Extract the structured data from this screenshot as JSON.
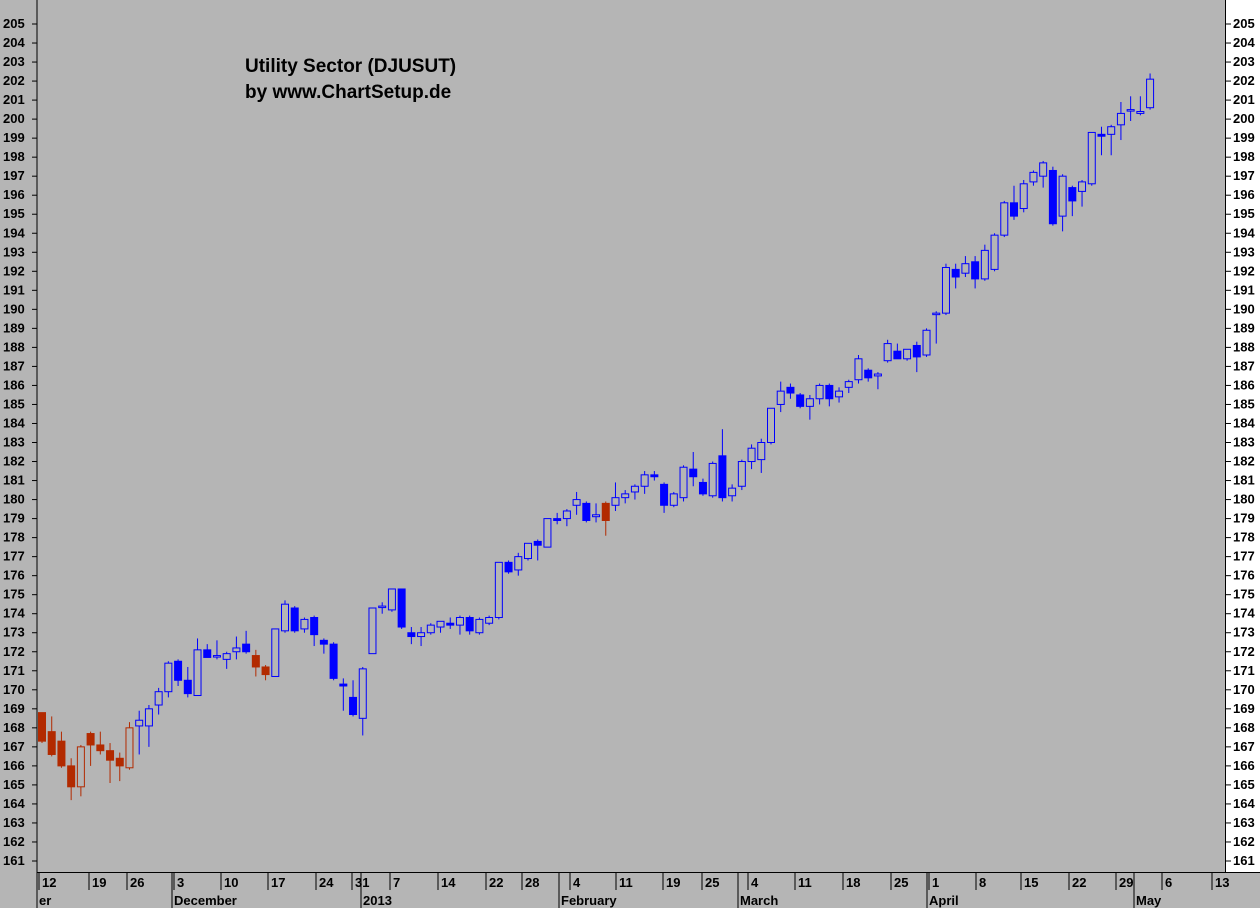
{
  "chart_data": {
    "type": "candlestick",
    "title": "Utility Sector (DJUSUT)",
    "subtitle": "by www.ChartSetup.de",
    "ylim": [
      160.3,
      206.5
    ],
    "y_ticks": [
      161,
      162,
      163,
      164,
      165,
      166,
      167,
      168,
      169,
      170,
      171,
      172,
      173,
      174,
      175,
      176,
      177,
      178,
      179,
      180,
      181,
      182,
      183,
      184,
      185,
      186,
      187,
      188,
      189,
      190,
      191,
      192,
      193,
      194,
      195,
      196,
      197,
      198,
      199,
      200,
      201,
      202,
      203,
      204,
      205
    ],
    "grid": false,
    "x_day_labels": [
      "12",
      "19",
      "26",
      "3",
      "10",
      "17",
      "24",
      "31",
      "7",
      "14",
      "22",
      "28",
      "4",
      "11",
      "19",
      "25",
      "4",
      "11",
      "18",
      "25",
      "1",
      "8",
      "15",
      "22",
      "29",
      "6",
      "13"
    ],
    "x_month_labels": [
      "er",
      "December",
      "2013",
      "February",
      "March",
      "April",
      "May"
    ],
    "colors": {
      "background": "#b5b5b5",
      "up": "#0000ff",
      "down": "#0000ff",
      "up_early": "#b22a00",
      "down_early": "#b22a00"
    },
    "candles": [
      {
        "o": 168.8,
        "h": 168.8,
        "l": 167.2,
        "c": 167.3,
        "s": "early"
      },
      {
        "o": 167.8,
        "h": 168.6,
        "l": 166.5,
        "c": 166.6,
        "s": "early"
      },
      {
        "o": 167.3,
        "h": 167.8,
        "l": 165.9,
        "c": 166.0,
        "s": "early"
      },
      {
        "o": 166.0,
        "h": 166.4,
        "l": 164.2,
        "c": 164.9,
        "s": "early"
      },
      {
        "o": 164.9,
        "h": 167.1,
        "l": 164.4,
        "c": 167.0,
        "s": "early"
      },
      {
        "o": 167.7,
        "h": 167.8,
        "l": 166.0,
        "c": 167.1,
        "s": "early"
      },
      {
        "o": 167.1,
        "h": 167.8,
        "l": 166.6,
        "c": 166.8,
        "s": "early"
      },
      {
        "o": 166.8,
        "h": 167.2,
        "l": 165.1,
        "c": 166.3,
        "s": "early"
      },
      {
        "o": 166.4,
        "h": 166.7,
        "l": 165.2,
        "c": 166.0,
        "s": "early"
      },
      {
        "o": 165.9,
        "h": 168.3,
        "l": 165.8,
        "c": 168.0,
        "s": "early"
      },
      {
        "o": 168.1,
        "h": 168.9,
        "l": 166.6,
        "c": 168.4,
        "s": "main"
      },
      {
        "o": 168.1,
        "h": 169.2,
        "l": 167.0,
        "c": 169.0,
        "s": "main"
      },
      {
        "o": 169.2,
        "h": 170.1,
        "l": 168.7,
        "c": 169.9,
        "s": "main"
      },
      {
        "o": 169.9,
        "h": 171.5,
        "l": 169.6,
        "c": 171.4,
        "s": "main"
      },
      {
        "o": 171.5,
        "h": 171.6,
        "l": 170.2,
        "c": 170.5,
        "s": "main"
      },
      {
        "o": 170.5,
        "h": 171.2,
        "l": 169.6,
        "c": 169.8,
        "s": "main"
      },
      {
        "o": 169.7,
        "h": 172.7,
        "l": 169.7,
        "c": 172.1,
        "s": "main"
      },
      {
        "o": 172.1,
        "h": 172.4,
        "l": 171.7,
        "c": 171.7,
        "s": "main"
      },
      {
        "o": 171.8,
        "h": 172.6,
        "l": 171.6,
        "c": 171.8,
        "s": "main"
      },
      {
        "o": 171.6,
        "h": 172.0,
        "l": 171.1,
        "c": 171.9,
        "s": "main"
      },
      {
        "o": 172.0,
        "h": 172.8,
        "l": 171.6,
        "c": 172.2,
        "s": "main"
      },
      {
        "o": 172.4,
        "h": 173.1,
        "l": 171.9,
        "c": 172.0,
        "s": "main"
      },
      {
        "o": 171.8,
        "h": 172.1,
        "l": 170.7,
        "c": 171.2,
        "s": "early"
      },
      {
        "o": 171.2,
        "h": 171.3,
        "l": 170.5,
        "c": 170.8,
        "s": "early"
      },
      {
        "o": 170.7,
        "h": 173.2,
        "l": 170.7,
        "c": 173.2,
        "s": "main"
      },
      {
        "o": 173.1,
        "h": 174.7,
        "l": 173.0,
        "c": 174.5,
        "s": "main"
      },
      {
        "o": 174.3,
        "h": 174.4,
        "l": 173.0,
        "c": 173.1,
        "s": "main"
      },
      {
        "o": 173.2,
        "h": 173.8,
        "l": 173.0,
        "c": 173.7,
        "s": "main"
      },
      {
        "o": 173.8,
        "h": 173.9,
        "l": 172.3,
        "c": 172.9,
        "s": "main"
      },
      {
        "o": 172.6,
        "h": 172.7,
        "l": 171.9,
        "c": 172.4,
        "s": "main"
      },
      {
        "o": 172.4,
        "h": 172.5,
        "l": 170.5,
        "c": 170.6,
        "s": "main"
      },
      {
        "o": 170.3,
        "h": 170.6,
        "l": 168.9,
        "c": 170.2,
        "s": "main"
      },
      {
        "o": 169.6,
        "h": 170.5,
        "l": 168.6,
        "c": 168.7,
        "s": "main"
      },
      {
        "o": 168.5,
        "h": 171.2,
        "l": 167.6,
        "c": 171.1,
        "s": "main"
      },
      {
        "o": 171.9,
        "h": 174.3,
        "l": 171.9,
        "c": 174.3,
        "s": "main"
      },
      {
        "o": 174.4,
        "h": 174.6,
        "l": 174.0,
        "c": 174.4,
        "s": "main"
      },
      {
        "o": 174.2,
        "h": 175.2,
        "l": 174.1,
        "c": 175.3,
        "s": "main"
      },
      {
        "o": 175.3,
        "h": 175.3,
        "l": 173.2,
        "c": 173.3,
        "s": "main"
      },
      {
        "o": 173.0,
        "h": 173.3,
        "l": 172.4,
        "c": 172.8,
        "s": "main"
      },
      {
        "o": 172.8,
        "h": 173.3,
        "l": 172.3,
        "c": 173.0,
        "s": "main"
      },
      {
        "o": 173.0,
        "h": 173.5,
        "l": 172.9,
        "c": 173.4,
        "s": "main"
      },
      {
        "o": 173.3,
        "h": 173.6,
        "l": 173.0,
        "c": 173.6,
        "s": "main"
      },
      {
        "o": 173.5,
        "h": 173.8,
        "l": 173.2,
        "c": 173.4,
        "s": "main"
      },
      {
        "o": 173.4,
        "h": 173.9,
        "l": 172.9,
        "c": 173.8,
        "s": "main"
      },
      {
        "o": 173.8,
        "h": 173.9,
        "l": 172.9,
        "c": 173.1,
        "s": "main"
      },
      {
        "o": 173.0,
        "h": 173.8,
        "l": 172.9,
        "c": 173.7,
        "s": "main"
      },
      {
        "o": 173.5,
        "h": 173.9,
        "l": 173.4,
        "c": 173.8,
        "s": "main"
      },
      {
        "o": 173.8,
        "h": 176.5,
        "l": 173.7,
        "c": 176.7,
        "s": "main"
      },
      {
        "o": 176.7,
        "h": 176.8,
        "l": 176.1,
        "c": 176.2,
        "s": "main"
      },
      {
        "o": 176.3,
        "h": 177.2,
        "l": 176.0,
        "c": 177.0,
        "s": "main"
      },
      {
        "o": 176.9,
        "h": 177.7,
        "l": 176.8,
        "c": 177.7,
        "s": "main"
      },
      {
        "o": 177.8,
        "h": 177.9,
        "l": 176.8,
        "c": 177.6,
        "s": "main"
      },
      {
        "o": 177.5,
        "h": 179.0,
        "l": 177.5,
        "c": 179.0,
        "s": "main"
      },
      {
        "o": 179.0,
        "h": 179.3,
        "l": 178.7,
        "c": 178.9,
        "s": "main"
      },
      {
        "o": 179.0,
        "h": 179.5,
        "l": 178.6,
        "c": 179.4,
        "s": "main"
      },
      {
        "o": 179.7,
        "h": 180.4,
        "l": 179.2,
        "c": 180.0,
        "s": "main"
      },
      {
        "o": 179.8,
        "h": 179.9,
        "l": 178.8,
        "c": 178.9,
        "s": "main"
      },
      {
        "o": 179.1,
        "h": 179.8,
        "l": 178.8,
        "c": 179.2,
        "s": "main"
      },
      {
        "o": 179.8,
        "h": 179.9,
        "l": 178.1,
        "c": 178.9,
        "s": "early"
      },
      {
        "o": 179.7,
        "h": 180.9,
        "l": 179.4,
        "c": 180.1,
        "s": "main"
      },
      {
        "o": 180.1,
        "h": 180.5,
        "l": 179.8,
        "c": 180.3,
        "s": "main"
      },
      {
        "o": 180.4,
        "h": 180.8,
        "l": 180.0,
        "c": 180.7,
        "s": "main"
      },
      {
        "o": 180.7,
        "h": 181.5,
        "l": 180.3,
        "c": 181.3,
        "s": "main"
      },
      {
        "o": 181.3,
        "h": 181.5,
        "l": 181.0,
        "c": 181.2,
        "s": "main"
      },
      {
        "o": 180.8,
        "h": 180.9,
        "l": 179.3,
        "c": 179.7,
        "s": "main"
      },
      {
        "o": 179.7,
        "h": 180.4,
        "l": 179.6,
        "c": 180.3,
        "s": "main"
      },
      {
        "o": 180.1,
        "h": 181.8,
        "l": 179.9,
        "c": 181.7,
        "s": "main"
      },
      {
        "o": 181.6,
        "h": 182.5,
        "l": 180.7,
        "c": 181.2,
        "s": "main"
      },
      {
        "o": 180.9,
        "h": 181.1,
        "l": 180.2,
        "c": 180.3,
        "s": "main"
      },
      {
        "o": 180.2,
        "h": 182.0,
        "l": 180.1,
        "c": 181.9,
        "s": "main"
      },
      {
        "o": 182.3,
        "h": 183.7,
        "l": 179.9,
        "c": 180.1,
        "s": "main"
      },
      {
        "o": 180.2,
        "h": 180.8,
        "l": 179.9,
        "c": 180.6,
        "s": "main"
      },
      {
        "o": 180.7,
        "h": 182.1,
        "l": 180.5,
        "c": 182.0,
        "s": "main"
      },
      {
        "o": 182.0,
        "h": 182.9,
        "l": 181.6,
        "c": 182.7,
        "s": "main"
      },
      {
        "o": 182.1,
        "h": 183.2,
        "l": 181.4,
        "c": 183.0,
        "s": "main"
      },
      {
        "o": 183.0,
        "h": 184.8,
        "l": 182.9,
        "c": 184.8,
        "s": "main"
      },
      {
        "o": 185.0,
        "h": 186.2,
        "l": 184.6,
        "c": 185.7,
        "s": "main"
      },
      {
        "o": 185.9,
        "h": 186.1,
        "l": 185.3,
        "c": 185.6,
        "s": "main"
      },
      {
        "o": 185.5,
        "h": 185.6,
        "l": 184.8,
        "c": 184.9,
        "s": "main"
      },
      {
        "o": 184.9,
        "h": 185.5,
        "l": 184.2,
        "c": 185.3,
        "s": "main"
      },
      {
        "o": 185.3,
        "h": 186.1,
        "l": 185.0,
        "c": 186.0,
        "s": "main"
      },
      {
        "o": 186.0,
        "h": 186.1,
        "l": 184.9,
        "c": 185.3,
        "s": "main"
      },
      {
        "o": 185.4,
        "h": 185.9,
        "l": 185.1,
        "c": 185.7,
        "s": "main"
      },
      {
        "o": 185.9,
        "h": 186.3,
        "l": 185.6,
        "c": 186.2,
        "s": "main"
      },
      {
        "o": 186.3,
        "h": 187.6,
        "l": 186.1,
        "c": 187.4,
        "s": "main"
      },
      {
        "o": 186.8,
        "h": 186.9,
        "l": 186.2,
        "c": 186.4,
        "s": "main"
      },
      {
        "o": 186.5,
        "h": 186.7,
        "l": 185.8,
        "c": 186.6,
        "s": "main"
      },
      {
        "o": 187.3,
        "h": 188.4,
        "l": 187.2,
        "c": 188.2,
        "s": "main"
      },
      {
        "o": 187.8,
        "h": 188.2,
        "l": 187.4,
        "c": 187.4,
        "s": "main"
      },
      {
        "o": 187.4,
        "h": 187.9,
        "l": 187.3,
        "c": 187.9,
        "s": "main"
      },
      {
        "o": 188.1,
        "h": 188.3,
        "l": 186.7,
        "c": 187.5,
        "s": "main"
      },
      {
        "o": 187.6,
        "h": 189.0,
        "l": 187.5,
        "c": 188.9,
        "s": "main"
      },
      {
        "o": 189.8,
        "h": 189.9,
        "l": 188.2,
        "c": 189.8,
        "s": "main"
      },
      {
        "o": 189.8,
        "h": 192.4,
        "l": 189.7,
        "c": 192.2,
        "s": "main"
      },
      {
        "o": 192.1,
        "h": 192.4,
        "l": 191.1,
        "c": 191.7,
        "s": "main"
      },
      {
        "o": 191.9,
        "h": 192.8,
        "l": 191.7,
        "c": 192.4,
        "s": "main"
      },
      {
        "o": 192.5,
        "h": 192.8,
        "l": 191.1,
        "c": 191.6,
        "s": "main"
      },
      {
        "o": 191.6,
        "h": 193.4,
        "l": 191.5,
        "c": 193.1,
        "s": "main"
      },
      {
        "o": 192.1,
        "h": 194.0,
        "l": 192.0,
        "c": 193.9,
        "s": "main"
      },
      {
        "o": 193.9,
        "h": 195.7,
        "l": 193.8,
        "c": 195.6,
        "s": "main"
      },
      {
        "o": 195.6,
        "h": 196.5,
        "l": 194.7,
        "c": 194.9,
        "s": "main"
      },
      {
        "o": 195.3,
        "h": 196.8,
        "l": 195.1,
        "c": 196.6,
        "s": "main"
      },
      {
        "o": 196.7,
        "h": 197.3,
        "l": 196.5,
        "c": 197.2,
        "s": "main"
      },
      {
        "o": 197.0,
        "h": 197.8,
        "l": 196.4,
        "c": 197.7,
        "s": "main"
      },
      {
        "o": 197.3,
        "h": 197.5,
        "l": 194.4,
        "c": 194.5,
        "s": "main"
      },
      {
        "o": 194.9,
        "h": 197.1,
        "l": 194.1,
        "c": 197.0,
        "s": "main"
      },
      {
        "o": 196.4,
        "h": 196.5,
        "l": 194.9,
        "c": 195.7,
        "s": "main"
      },
      {
        "o": 196.2,
        "h": 196.8,
        "l": 195.4,
        "c": 196.7,
        "s": "main"
      },
      {
        "o": 196.6,
        "h": 199.2,
        "l": 196.5,
        "c": 199.3,
        "s": "main"
      },
      {
        "o": 199.2,
        "h": 199.6,
        "l": 198.1,
        "c": 199.1,
        "s": "main"
      },
      {
        "o": 199.2,
        "h": 199.7,
        "l": 198.1,
        "c": 199.6,
        "s": "main"
      },
      {
        "o": 199.7,
        "h": 200.9,
        "l": 198.9,
        "c": 200.3,
        "s": "main"
      },
      {
        "o": 200.5,
        "h": 201.2,
        "l": 199.9,
        "c": 200.5,
        "s": "main"
      },
      {
        "o": 200.3,
        "h": 201.2,
        "l": 200.2,
        "c": 200.4,
        "s": "main"
      },
      {
        "o": 200.6,
        "h": 202.4,
        "l": 200.5,
        "c": 202.1,
        "s": "main"
      }
    ]
  }
}
